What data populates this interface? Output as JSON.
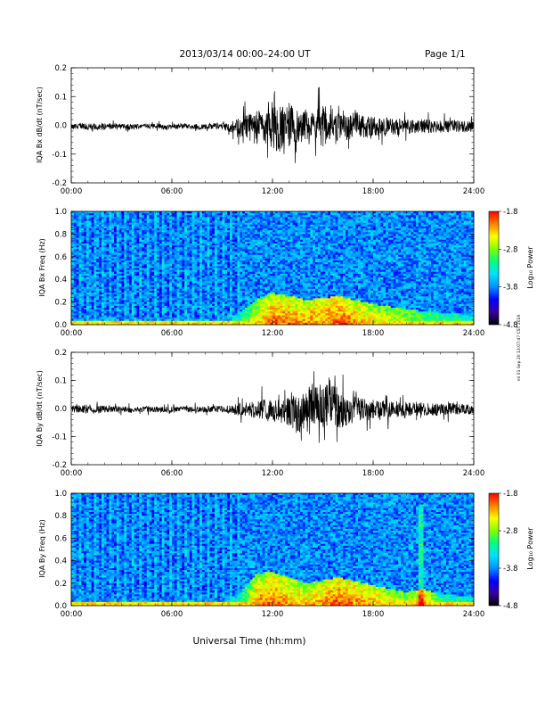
{
  "header": {
    "title": "2013/03/14  00:00–24:00 UT",
    "page": "Page 1/1"
  },
  "side_stamp": "ml 01 Sep 20 13:07:47 CST 2019",
  "x_axis_title": "Universal Time (hh:mm)",
  "chart_data": [
    {
      "type": "line",
      "id": "bx-dbdt",
      "ylabel": "IQA Bx dB/dt (nT/sec)",
      "xlim": [
        0,
        24
      ],
      "ylim": [
        -0.2,
        0.2
      ],
      "x_ticks": [
        "00:00",
        "06:00",
        "12:00",
        "18:00",
        "24:00"
      ],
      "y_ticks": [
        "0.2",
        "0.1",
        "0.0",
        "-0.1",
        "-0.2"
      ],
      "envelope": {
        "x": [
          0,
          1,
          2,
          3,
          4,
          5,
          6,
          7,
          8,
          9,
          9.5,
          10,
          10.5,
          11,
          11.5,
          12,
          12.5,
          13,
          13.5,
          14,
          14.5,
          15,
          15.5,
          16,
          16.5,
          17,
          17.5,
          18,
          19,
          20,
          21,
          22,
          23,
          24
        ],
        "upper": [
          0.01,
          0.012,
          0.012,
          0.01,
          0.008,
          0.008,
          0.01,
          0.008,
          0.01,
          0.012,
          0.02,
          0.045,
          0.06,
          0.08,
          0.07,
          0.09,
          0.1,
          0.11,
          0.06,
          0.07,
          0.065,
          0.11,
          0.05,
          0.08,
          0.07,
          0.06,
          0.05,
          0.045,
          0.035,
          0.03,
          0.03,
          0.028,
          0.025,
          0.022
        ],
        "lower": [
          -0.018,
          -0.02,
          -0.02,
          -0.018,
          -0.016,
          -0.016,
          -0.018,
          -0.016,
          -0.018,
          -0.02,
          -0.03,
          -0.06,
          -0.07,
          -0.09,
          -0.08,
          -0.11,
          -0.125,
          -0.1,
          -0.08,
          -0.075,
          -0.07,
          -0.11,
          -0.06,
          -0.08,
          -0.07,
          -0.065,
          -0.06,
          -0.05,
          -0.045,
          -0.04,
          -0.038,
          -0.035,
          -0.032,
          -0.03
        ]
      }
    },
    {
      "type": "heatmap",
      "id": "bx-spectrogram",
      "ylabel": "IQA Bx Freq (Hz)",
      "xlim": [
        0,
        24
      ],
      "ylim": [
        0,
        1.0
      ],
      "x_ticks": [
        "00:00",
        "06:00",
        "12:00",
        "18:00",
        "24:00"
      ],
      "y_ticks": [
        "1.0",
        "0.8",
        "0.6",
        "0.4",
        "0.2",
        "0.0"
      ],
      "colorbar": {
        "label": "Log₁₀ Power",
        "ticks": [
          "-1.8",
          "-2.8",
          "-3.8",
          "-4.8"
        ],
        "range": [
          -4.8,
          -1.8
        ],
        "colors": [
          "#000000",
          "#3a00a0",
          "#0000ff",
          "#0090ff",
          "#00e0ff",
          "#00ff80",
          "#80ff00",
          "#ffff00",
          "#ff8000",
          "#ff0000"
        ]
      },
      "activity": {
        "x": [
          0,
          6,
          9,
          10,
          11,
          12,
          14,
          16,
          18,
          21,
          24
        ],
        "level": [
          0.35,
          0.35,
          0.35,
          0.45,
          0.6,
          0.7,
          0.7,
          0.75,
          0.65,
          0.55,
          0.45
        ],
        "band_top_hz": [
          0.06,
          0.06,
          0.06,
          0.1,
          0.22,
          0.28,
          0.22,
          0.25,
          0.18,
          0.12,
          0.08
        ]
      }
    },
    {
      "type": "line",
      "id": "by-dbdt",
      "ylabel": "IQA By dB/dt (nT/sec)",
      "xlim": [
        0,
        24
      ],
      "ylim": [
        -0.2,
        0.2
      ],
      "x_ticks": [
        "00:00",
        "06:00",
        "12:00",
        "18:00",
        "24:00"
      ],
      "y_ticks": [
        "0.2",
        "0.1",
        "0.0",
        "-0.1",
        "-0.2"
      ],
      "envelope": {
        "x": [
          0,
          1,
          2,
          3,
          4,
          5,
          6,
          7,
          8,
          9,
          9.5,
          10,
          10.5,
          11,
          11.5,
          12,
          12.5,
          13,
          13.5,
          14,
          14.5,
          15,
          15.5,
          16,
          16.5,
          17,
          17.5,
          18,
          19,
          20,
          21,
          22,
          23,
          24
        ],
        "upper": [
          0.015,
          0.02,
          0.015,
          0.012,
          0.012,
          0.012,
          0.012,
          0.01,
          0.012,
          0.015,
          0.02,
          0.03,
          0.035,
          0.04,
          0.05,
          0.05,
          0.06,
          0.085,
          0.08,
          0.09,
          0.1,
          0.12,
          0.14,
          0.09,
          0.07,
          0.065,
          0.05,
          0.045,
          0.04,
          0.035,
          0.03,
          0.028,
          0.025,
          0.022
        ],
        "lower": [
          -0.02,
          -0.025,
          -0.02,
          -0.018,
          -0.018,
          -0.018,
          -0.018,
          -0.016,
          -0.018,
          -0.02,
          -0.025,
          -0.035,
          -0.04,
          -0.05,
          -0.06,
          -0.06,
          -0.07,
          -0.09,
          -0.125,
          -0.09,
          -0.09,
          -0.1,
          -0.085,
          -0.1,
          -0.08,
          -0.07,
          -0.06,
          -0.05,
          -0.045,
          -0.04,
          -0.035,
          -0.032,
          -0.03,
          -0.028
        ]
      }
    },
    {
      "type": "heatmap",
      "id": "by-spectrogram",
      "ylabel": "IQA By Freq (Hz)",
      "xlim": [
        0,
        24
      ],
      "ylim": [
        0,
        1.0
      ],
      "x_ticks": [
        "00:00",
        "06:00",
        "12:00",
        "18:00",
        "24:00"
      ],
      "y_ticks": [
        "1.0",
        "0.8",
        "0.6",
        "0.4",
        "0.2",
        "0.0"
      ],
      "colorbar": {
        "label": "Log₁₀ Power",
        "ticks": [
          "-1.8",
          "-2.8",
          "-3.8",
          "-4.8"
        ],
        "range": [
          -4.8,
          -1.8
        ],
        "colors": [
          "#000000",
          "#3a00a0",
          "#0000ff",
          "#0090ff",
          "#00e0ff",
          "#00ff80",
          "#80ff00",
          "#ffff00",
          "#ff8000",
          "#ff0000"
        ]
      },
      "activity": {
        "x": [
          0,
          6,
          9,
          10,
          11,
          12,
          14,
          16,
          18,
          20,
          21,
          22,
          24
        ],
        "level": [
          0.35,
          0.35,
          0.35,
          0.45,
          0.65,
          0.7,
          0.65,
          0.75,
          0.7,
          0.6,
          0.75,
          0.5,
          0.45
        ],
        "band_top_hz": [
          0.06,
          0.06,
          0.06,
          0.1,
          0.28,
          0.3,
          0.2,
          0.25,
          0.18,
          0.12,
          0.15,
          0.1,
          0.08
        ]
      },
      "vertical_feature_hours": 20.8
    }
  ]
}
